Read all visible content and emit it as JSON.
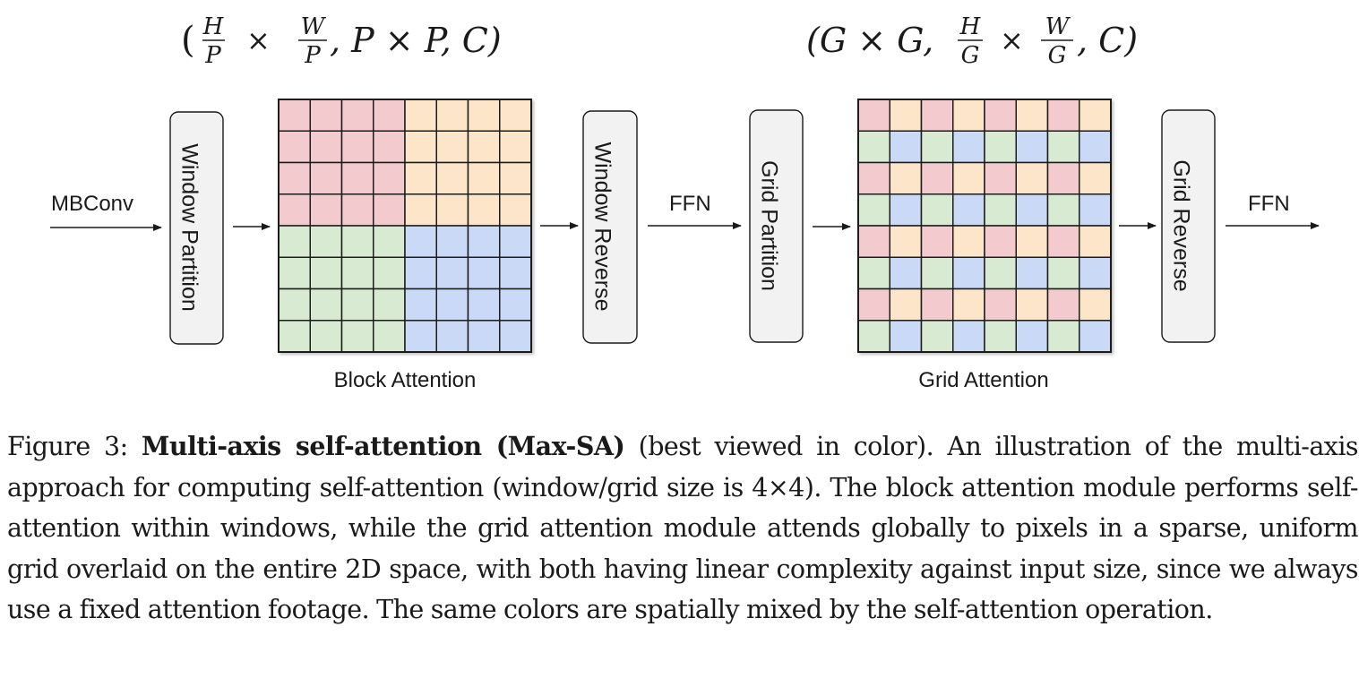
{
  "formulas": {
    "block_shape": {
      "open": "(",
      "num1": "H",
      "den1": "P",
      "times1": "×",
      "num2": "W",
      "den2": "P",
      "rest": ", P × P, C)"
    },
    "grid_shape": {
      "open": "(G × G, ",
      "num1": "H",
      "den1": "G",
      "times1": "×",
      "num2": "W",
      "den2": "G",
      "rest": ", C)"
    }
  },
  "labels": {
    "input": "MBConv",
    "window_partition": "Window Partition",
    "block_attention": "Block Attention",
    "window_reverse": "Window Reverse",
    "ffn1": "FFN",
    "grid_partition": "Grid Partition",
    "grid_attention": "Grid Attention",
    "grid_reverse": "Grid Reverse",
    "ffn2": "FFN"
  },
  "grid_size": 8,
  "colors": {
    "pink": "#f3cbcf",
    "peach": "#fce5c9",
    "green": "#d8ead2",
    "blue": "#c9d9f6",
    "box_fill": "#f2f2f2",
    "stroke": "#1a1a1a"
  },
  "block_attention_pattern": [
    [
      "pink",
      "pink",
      "pink",
      "pink",
      "peach",
      "peach",
      "peach",
      "peach"
    ],
    [
      "pink",
      "pink",
      "pink",
      "pink",
      "peach",
      "peach",
      "peach",
      "peach"
    ],
    [
      "pink",
      "pink",
      "pink",
      "pink",
      "peach",
      "peach",
      "peach",
      "peach"
    ],
    [
      "pink",
      "pink",
      "pink",
      "pink",
      "peach",
      "peach",
      "peach",
      "peach"
    ],
    [
      "green",
      "green",
      "green",
      "green",
      "blue",
      "blue",
      "blue",
      "blue"
    ],
    [
      "green",
      "green",
      "green",
      "green",
      "blue",
      "blue",
      "blue",
      "blue"
    ],
    [
      "green",
      "green",
      "green",
      "green",
      "blue",
      "blue",
      "blue",
      "blue"
    ],
    [
      "green",
      "green",
      "green",
      "green",
      "blue",
      "blue",
      "blue",
      "blue"
    ]
  ],
  "grid_attention_pattern": [
    [
      "pink",
      "peach",
      "pink",
      "peach",
      "pink",
      "peach",
      "pink",
      "peach"
    ],
    [
      "green",
      "blue",
      "green",
      "blue",
      "green",
      "blue",
      "green",
      "blue"
    ],
    [
      "pink",
      "peach",
      "pink",
      "peach",
      "pink",
      "peach",
      "pink",
      "peach"
    ],
    [
      "green",
      "blue",
      "green",
      "blue",
      "green",
      "blue",
      "green",
      "blue"
    ],
    [
      "pink",
      "peach",
      "pink",
      "peach",
      "pink",
      "peach",
      "pink",
      "peach"
    ],
    [
      "green",
      "blue",
      "green",
      "blue",
      "green",
      "blue",
      "green",
      "blue"
    ],
    [
      "pink",
      "peach",
      "pink",
      "peach",
      "pink",
      "peach",
      "pink",
      "peach"
    ],
    [
      "green",
      "blue",
      "green",
      "blue",
      "green",
      "blue",
      "green",
      "blue"
    ]
  ],
  "caption": {
    "prefix": "Figure 3: ",
    "bold": "Multi-axis self-attention (Max-SA)",
    "body": " (best viewed in color). An illustration of the multi-axis approach for computing self-attention (window/grid size is 4×4). The block attention module performs self-attention within windows, while the grid attention module attends globally to pixels in a sparse, uniform grid overlaid on the entire 2D space, with both having linear complexity against input size, since we always use a fixed attention footage. The same colors are spatially mixed by the self-attention operation."
  }
}
